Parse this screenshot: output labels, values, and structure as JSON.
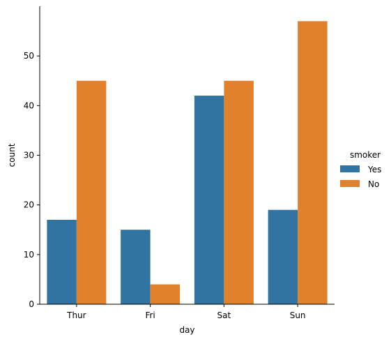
{
  "chart_data": {
    "type": "bar",
    "categories": [
      "Thur",
      "Fri",
      "Sat",
      "Sun"
    ],
    "series": [
      {
        "name": "Yes",
        "values": [
          17,
          15,
          42,
          19
        ],
        "color": "#3274a1"
      },
      {
        "name": "No",
        "values": [
          45,
          4,
          45,
          57
        ],
        "color": "#e1812c"
      }
    ],
    "xlabel": "day",
    "ylabel": "count",
    "ylim": [
      0,
      60
    ],
    "yticks": [
      0,
      10,
      20,
      30,
      40,
      50
    ],
    "grid": false,
    "legend": {
      "title": "smoker",
      "placement": "right"
    }
  }
}
